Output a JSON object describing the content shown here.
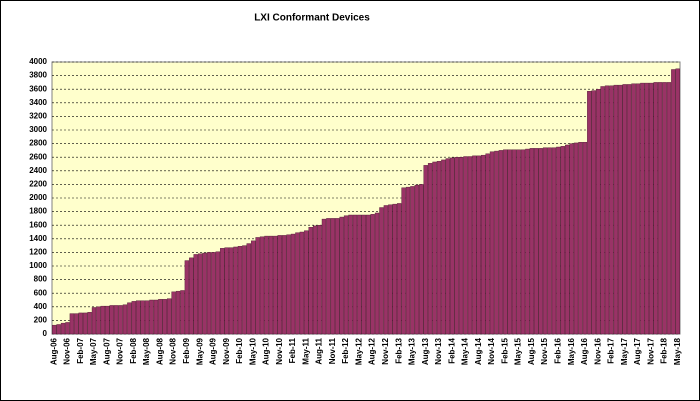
{
  "chart_data": {
    "type": "bar",
    "title": "LXI Conformant Devices",
    "categories": [
      "Aug-06",
      null,
      null,
      "Nov-06",
      null,
      null,
      "Feb-07",
      null,
      null,
      "May-07",
      null,
      null,
      "Aug-07",
      null,
      null,
      "Nov-07",
      null,
      null,
      "Feb-08",
      null,
      null,
      "May-08",
      null,
      null,
      "Aug-08",
      null,
      null,
      "Nov-08",
      null,
      null,
      "Feb-09",
      null,
      null,
      "May-09",
      null,
      null,
      "Aug-09",
      null,
      null,
      "Nov-09",
      null,
      null,
      "Feb-10",
      null,
      null,
      "May-10",
      null,
      null,
      "Aug-10",
      null,
      null,
      "Nov-10",
      null,
      null,
      "Feb-11",
      null,
      null,
      "May-11",
      null,
      null,
      "Aug-11",
      null,
      null,
      "Nov-11",
      null,
      null,
      "Feb-12",
      null,
      null,
      "May-12",
      null,
      null,
      "Aug-12",
      null,
      null,
      "Nov-12",
      null,
      null,
      "Feb-13",
      null,
      null,
      "May-13",
      null,
      null,
      "Aug-13",
      null,
      null,
      "Nov-13",
      null,
      null,
      "Feb-14",
      null,
      null,
      "May-14",
      null,
      null,
      "Aug-14",
      null,
      null,
      "Nov-14",
      null,
      null,
      "Feb-15",
      null,
      null,
      "May-15",
      null,
      null,
      "Aug-15",
      null,
      null,
      "Nov-15",
      null,
      null,
      "Feb-16",
      null,
      null,
      "May-16",
      null,
      null,
      "Aug-16",
      null,
      null,
      "Nov-16",
      null,
      null,
      "Feb-17",
      null,
      null,
      "May-17",
      null,
      null,
      "Aug-17",
      null,
      null,
      "Nov-17",
      null,
      null,
      "Feb-18",
      null,
      null,
      "May-18"
    ],
    "values": [
      130,
      140,
      160,
      170,
      300,
      300,
      310,
      310,
      320,
      390,
      400,
      410,
      410,
      420,
      420,
      420,
      430,
      460,
      480,
      490,
      490,
      490,
      500,
      500,
      510,
      510,
      520,
      620,
      630,
      640,
      1080,
      1120,
      1170,
      1180,
      1190,
      1200,
      1200,
      1210,
      1260,
      1270,
      1270,
      1280,
      1290,
      1300,
      1330,
      1370,
      1420,
      1430,
      1440,
      1440,
      1440,
      1450,
      1450,
      1460,
      1470,
      1490,
      1500,
      1520,
      1570,
      1590,
      1600,
      1690,
      1700,
      1700,
      1700,
      1720,
      1740,
      1750,
      1750,
      1750,
      1750,
      1750,
      1760,
      1780,
      1860,
      1890,
      1900,
      1910,
      1920,
      2150,
      2160,
      2170,
      2190,
      2200,
      2480,
      2510,
      2530,
      2540,
      2560,
      2580,
      2590,
      2600,
      2600,
      2610,
      2610,
      2620,
      2620,
      2630,
      2650,
      2680,
      2690,
      2700,
      2710,
      2710,
      2710,
      2710,
      2710,
      2720,
      2730,
      2730,
      2730,
      2740,
      2740,
      2740,
      2750,
      2760,
      2780,
      2800,
      2810,
      2820,
      2820,
      3570,
      3580,
      3600,
      3640,
      3650,
      3650,
      3660,
      3660,
      3670,
      3670,
      3680,
      3680,
      3690,
      3690,
      3690,
      3700,
      3700,
      3700,
      3700,
      3890,
      3900
    ],
    "color": "#993366",
    "ylim": [
      0,
      4000
    ],
    "yticks": [
      0,
      200,
      400,
      600,
      800,
      1000,
      1200,
      1400,
      1600,
      1800,
      2000,
      2200,
      2400,
      2600,
      2800,
      3000,
      3200,
      3400,
      3600,
      3800,
      4000
    ],
    "grid": true
  }
}
